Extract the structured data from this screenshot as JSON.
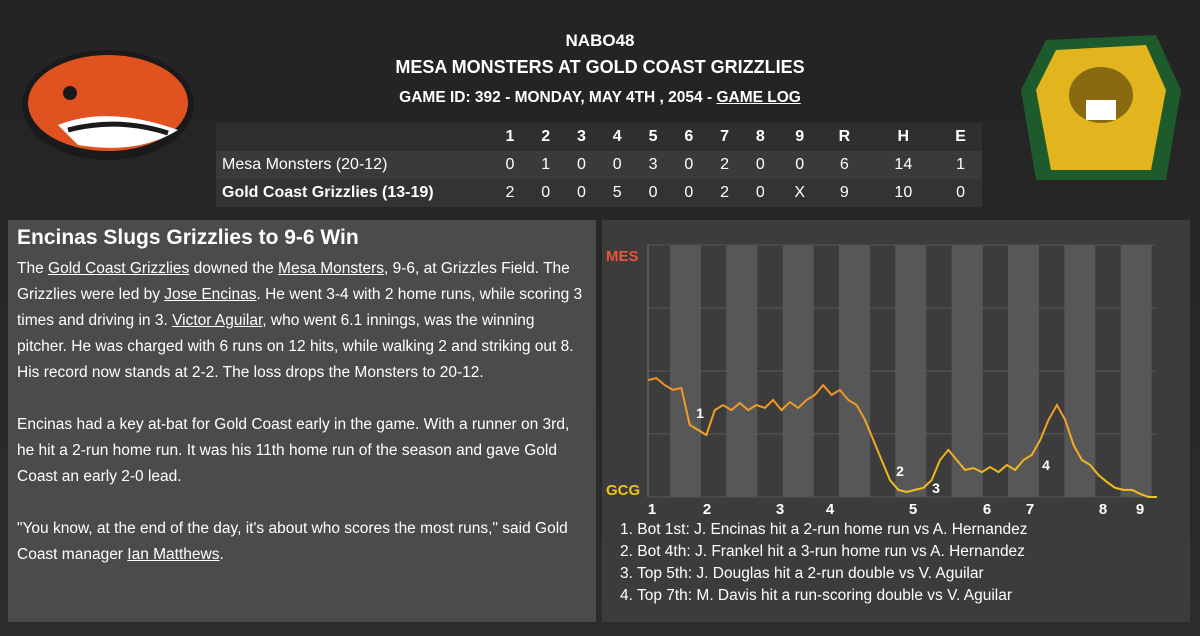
{
  "header": {
    "league": "NABO48",
    "title": "MESA MONSTERS AT GOLD COAST GRIZZLIES",
    "game_info": "GAME ID: 392 - MONDAY, MAY 4TH , 2054 - ",
    "game_log_link": "GAME LOG"
  },
  "line_score": {
    "columns": [
      "1",
      "2",
      "3",
      "4",
      "5",
      "6",
      "7",
      "8",
      "9",
      "R",
      "H",
      "E"
    ],
    "rows": [
      {
        "team": "Mesa Monsters (20-12)",
        "scores": [
          0,
          1,
          0,
          0,
          3,
          0,
          2,
          0,
          0,
          6,
          14,
          1
        ]
      },
      {
        "team": "Gold Coast Grizzlies (13-19)",
        "scores": [
          2,
          0,
          0,
          5,
          0,
          0,
          2,
          0,
          "X",
          9,
          10,
          0
        ]
      }
    ]
  },
  "story": {
    "headline": "Encinas Slugs Grizzlies to 9-6 Win",
    "paragraphs": [
      [
        "The ",
        {
          "link": "Gold Coast Grizzlies"
        },
        " downed the ",
        {
          "link": "Mesa Monsters"
        },
        ", 9-6, at Grizzles Field. The Grizzlies were led by ",
        {
          "link": "Jose Encinas"
        },
        ". He went 3-4 with 2 home runs, while scoring 3 times and driving in 3. ",
        {
          "link": "Victor Aguilar"
        },
        ", who went 6.1 innings, was the winning pitcher. He was charged with 6 runs on 12 hits, while walking 2 and striking out 8. His record now stands at 2-2. The loss drops the Monsters to 20-12."
      ],
      [
        "Encinas had a key at-bat for Gold Coast early in the game. With a runner on 3rd, he hit a 2-run home run. It was his 11th home run of the season and gave Gold Coast an early 2-0 lead."
      ],
      [
        "\"You know, at the end of the day, it's about who scores the most runs,\" said Gold Coast manager ",
        {
          "link": "Ian Matthews"
        },
        "."
      ]
    ]
  },
  "win_chart": {
    "type": "line",
    "top_label": "MES",
    "bottom_label": "GCG",
    "top_color": "#e8553a",
    "bottom_color": "#f2c21c",
    "innings": [
      "1",
      "2",
      "3",
      "4",
      "5",
      "6",
      "7",
      "8",
      "9"
    ],
    "ylim": [
      0,
      100
    ],
    "yticks": [
      25,
      50,
      75
    ],
    "values": [
      46.4,
      47.2,
      44.4,
      42.5,
      43.3,
      28.6,
      26.6,
      24.6,
      34.5,
      36.5,
      34.5,
      37.3,
      34.5,
      36.5,
      35.3,
      38.5,
      34.5,
      37.7,
      35.3,
      38.5,
      40.5,
      44.4,
      40.5,
      42.5,
      38.5,
      36.5,
      30.6,
      22.6,
      14.7,
      6.7,
      2.8,
      2.0,
      2.8,
      3.6,
      6.7,
      14.7,
      18.7,
      14.7,
      10.7,
      11.5,
      9.9,
      11.9,
      9.9,
      12.7,
      10.7,
      14.7,
      16.7,
      22.6,
      30.6,
      36.5,
      30.6,
      20.6,
      14.7,
      12.7,
      8.7,
      6.0,
      3.6,
      2.8,
      2.8,
      1.2,
      0,
      0
    ],
    "markers": [
      "1",
      "2",
      "3",
      "4"
    ],
    "notes": [
      "1. Bot 1st: J. Encinas hit a 2-run home run vs A. Hernandez",
      "2. Bot 4th: J. Frankel hit a 3-run home run vs A. Hernandez",
      "3. Top 5th: J. Douglas hit a 2-run double vs V. Aguilar",
      "4. Top 7th: M. Davis hit a run-scoring double vs V. Aguilar"
    ]
  }
}
